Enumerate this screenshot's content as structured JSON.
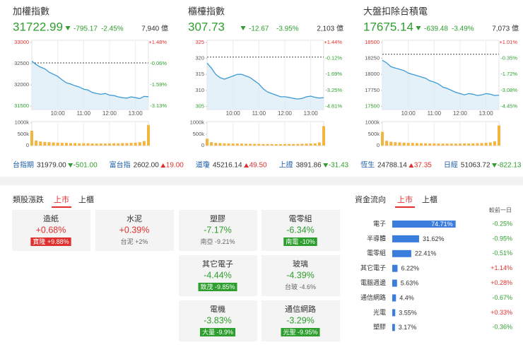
{
  "indices": [
    {
      "name": "加權指數",
      "value": "31722.99",
      "change": "-795.17",
      "change_pct": "-2.45%",
      "direction": "down",
      "turnover": "7,940 億",
      "ylim": [
        31420,
        33000
      ],
      "yticks": [
        33000,
        32500,
        32000,
        31500
      ],
      "pct_ticks": [
        "+1.48%",
        "-0.06%",
        "-1.59%",
        "-3.13%"
      ],
      "prev_close": 32518.16,
      "xlim": [
        0,
        270
      ],
      "xticks": [
        {
          "value": 60,
          "label": "10:00"
        },
        {
          "value": 120,
          "label": "11:00"
        },
        {
          "value": 180,
          "label": "12:00"
        },
        {
          "value": 240,
          "label": "13:00"
        }
      ],
      "x": [
        0,
        10,
        20,
        30,
        40,
        50,
        60,
        70,
        80,
        90,
        100,
        110,
        120,
        130,
        140,
        150,
        160,
        170,
        180,
        190,
        200,
        210,
        220,
        230,
        240,
        250,
        260,
        270
      ],
      "prices": [
        32560,
        32480,
        32420,
        32380,
        32300,
        32250,
        32200,
        32120,
        32050,
        32020,
        31980,
        31950,
        31900,
        31880,
        31820,
        31800,
        31780,
        31800,
        31760,
        31750,
        31720,
        31700,
        31690,
        31720,
        31700,
        31680,
        31730,
        31722.99
      ],
      "volume_ylim": [
        0,
        1050
      ],
      "volume_ticks": [
        {
          "value": 1000,
          "label": "1000k"
        },
        {
          "value": 500,
          "label": "500k"
        },
        0
      ],
      "volumes": [
        650,
        220,
        180,
        160,
        150,
        140,
        130,
        120,
        120,
        110,
        110,
        100,
        100,
        100,
        90,
        90,
        90,
        90,
        100,
        100,
        100,
        110,
        110,
        120,
        130,
        150,
        200,
        900
      ]
    },
    {
      "name": "櫃檯指數",
      "value": "307.73",
      "change": "-12.67",
      "change_pct": "-3.95%",
      "direction": "down",
      "turnover": "2,103 億",
      "ylim": [
        304,
        325
      ],
      "yticks": [
        325,
        320,
        315,
        310,
        305
      ],
      "pct_ticks": [
        "+1.44%",
        "-0.12%",
        "-1.69%",
        "-3.25%",
        "-4.81%"
      ],
      "prev_close": 320.4,
      "xlim": [
        0,
        270
      ],
      "xticks": [
        {
          "value": 60,
          "label": "10:00"
        },
        {
          "value": 120,
          "label": "11:00"
        },
        {
          "value": 180,
          "label": "12:00"
        },
        {
          "value": 240,
          "label": "13:00"
        }
      ],
      "x": [
        0,
        10,
        20,
        30,
        40,
        50,
        60,
        70,
        80,
        90,
        100,
        110,
        120,
        130,
        140,
        150,
        160,
        170,
        180,
        190,
        200,
        210,
        220,
        230,
        240,
        250,
        260,
        270
      ],
      "prices": [
        318.5,
        317,
        315,
        314,
        313.5,
        314,
        314.5,
        315,
        315,
        314.5,
        314,
        313,
        312,
        310.5,
        309.5,
        309,
        308.5,
        308,
        308,
        307.8,
        307.5,
        307.3,
        307.5,
        308,
        308.2,
        307.8,
        307.6,
        307.73
      ],
      "volume_ylim": [
        0,
        1050
      ],
      "volume_ticks": [
        {
          "value": 1000,
          "label": "1000k"
        },
        {
          "value": 500,
          "label": "500k"
        },
        0
      ],
      "volumes": [
        300,
        150,
        120,
        110,
        100,
        95,
        90,
        90,
        85,
        80,
        80,
        75,
        75,
        70,
        70,
        70,
        65,
        65,
        70,
        70,
        70,
        75,
        80,
        85,
        90,
        100,
        140,
        850
      ]
    },
    {
      "name": "大盤扣除台積電",
      "value": "17675.14",
      "change": "-639.48",
      "change_pct": "-3.49%",
      "direction": "down",
      "turnover": "7,073 億",
      "ylim": [
        17450,
        18500
      ],
      "yticks": [
        18500,
        18250,
        18000,
        17750,
        17500
      ],
      "pct_ticks": [
        "+1.01%",
        "-0.35%",
        "-1.72%",
        "-3.08%",
        "-4.45%"
      ],
      "prev_close": 18314.62,
      "xlim": [
        0,
        270
      ],
      "xticks": [
        {
          "value": 60,
          "label": "10:00"
        },
        {
          "value": 120,
          "label": "11:00"
        },
        {
          "value": 180,
          "label": "12:00"
        },
        {
          "value": 240,
          "label": "13:00"
        }
      ],
      "x": [
        0,
        10,
        20,
        30,
        40,
        50,
        60,
        70,
        80,
        90,
        100,
        110,
        120,
        130,
        140,
        150,
        160,
        170,
        180,
        190,
        200,
        210,
        220,
        230,
        240,
        250,
        260,
        270
      ],
      "prices": [
        18220,
        18180,
        18120,
        18100,
        18080,
        18060,
        18020,
        18000,
        17980,
        17960,
        17940,
        17900,
        17880,
        17850,
        17800,
        17780,
        17750,
        17720,
        17700,
        17680,
        17700,
        17690,
        17670,
        17680,
        17700,
        17690,
        17670,
        17675.14
      ],
      "volume_ylim": [
        0,
        1050
      ],
      "volume_ticks": [
        {
          "value": 1000,
          "label": "1000k"
        },
        {
          "value": 500,
          "label": "500k"
        },
        0
      ],
      "volumes": [
        600,
        210,
        170,
        150,
        140,
        130,
        120,
        115,
        110,
        105,
        100,
        95,
        95,
        90,
        85,
        85,
        85,
        85,
        90,
        95,
        95,
        100,
        105,
        110,
        120,
        140,
        190,
        880
      ]
    }
  ],
  "tickers": [
    {
      "name": "台指期",
      "value": "31979.00",
      "change": "-501.00",
      "direction": "down"
    },
    {
      "name": "富台指",
      "value": "2602.00",
      "change": "19.00",
      "direction": "up"
    },
    {
      "name": "道瓊",
      "value": "45216.14",
      "change": "49.50",
      "direction": "up"
    },
    {
      "name": "上證",
      "value": "3891.86",
      "change": "-31.43",
      "direction": "down"
    },
    {
      "name": "恆生",
      "value": "24788.14",
      "change": "37.35",
      "direction": "up"
    },
    {
      "name": "日經",
      "value": "51063.72",
      "change": "-822.13",
      "direction": "down"
    }
  ],
  "sectors": {
    "title": "類股漲跌",
    "tabs": [
      "上市",
      "上櫃"
    ],
    "items": [
      {
        "name": "造紙",
        "change": "+0.68%",
        "leader": "寶隆 +9.88%",
        "badge": true
      },
      {
        "name": "水泥",
        "change": "+0.39%",
        "leader": "台泥 +2%",
        "badge": false
      },
      {
        "name": "塑膠",
        "change": "-7.17%",
        "leader": "南亞 -9.21%",
        "badge": false
      },
      {
        "name": "電零組",
        "change": "-6.34%",
        "leader": "南電 -10%",
        "badge": true
      },
      {
        "name": "其它電子",
        "change": "-4.44%",
        "leader": "致茂 -9.85%",
        "badge": true
      },
      {
        "name": "玻璃",
        "change": "-4.39%",
        "leader": "台玻 -4.6%",
        "badge": false
      },
      {
        "name": "電機",
        "change": "-3.83%",
        "leader": "大量 -9.9%",
        "badge": true
      },
      {
        "name": "通信網路",
        "change": "-3.29%",
        "leader": "光聖 -9.95%",
        "badge": true
      }
    ]
  },
  "fund_flow": {
    "title": "資金流向",
    "tabs": [
      "上市",
      "上櫃"
    ],
    "compare_header": "較前一日",
    "rows": [
      {
        "name": "電子",
        "share": 74.71,
        "share_label": "74.71%",
        "change": "-0.25%"
      },
      {
        "name": "半導體",
        "share": 31.62,
        "share_label": "31.62%",
        "change": "-0.95%"
      },
      {
        "name": "電零組",
        "share": 22.41,
        "share_label": "22.41%",
        "change": "-0.51%"
      },
      {
        "name": "其它電子",
        "share": 6.22,
        "share_label": "6.22%",
        "change": "+1.14%"
      },
      {
        "name": "電腦週邊",
        "share": 5.63,
        "share_label": "5.63%",
        "change": "+0.28%"
      },
      {
        "name": "通信網路",
        "share": 4.4,
        "share_label": "4.4%",
        "change": "-0.67%"
      },
      {
        "name": "光電",
        "share": 3.55,
        "share_label": "3.55%",
        "change": "+0.33%"
      },
      {
        "name": "塑膠",
        "share": 3.17,
        "share_label": "3.17%",
        "change": "-0.36%"
      }
    ]
  }
}
